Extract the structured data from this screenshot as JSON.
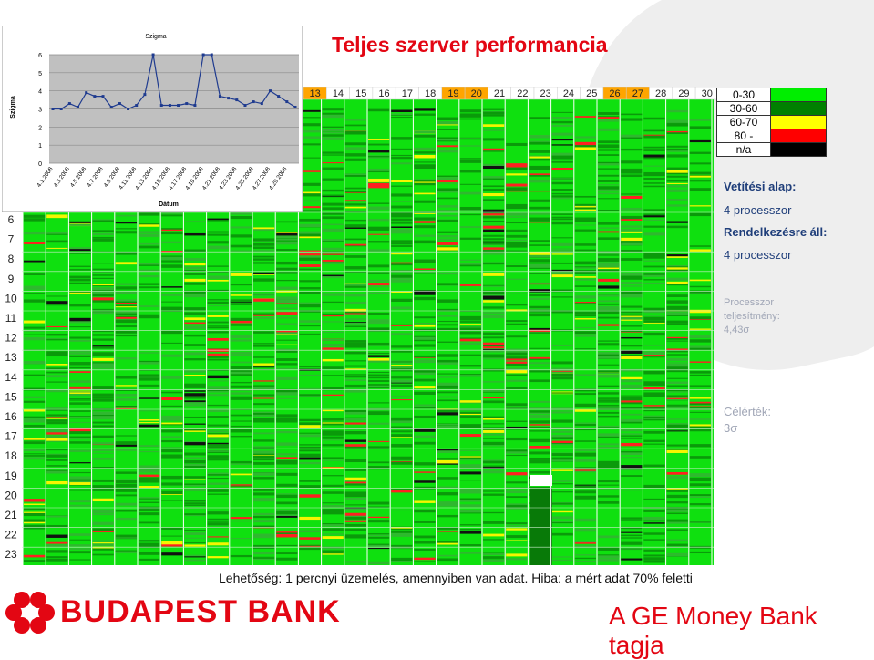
{
  "page": {
    "title": "Teljes szerver performancia",
    "footer_note": "Lehetőség: 1 percnyi üzemelés, amennyiben van adat. Hiba: a mért adat 70% feletti",
    "bank_name": "BUDAPEST BANK",
    "tagline": "A GE Money Bank tagja"
  },
  "info": {
    "base_label": "Vetítési alap:",
    "base_value": "4 processzor",
    "avail_label": "Rendelkezésre áll:",
    "avail_value": "4 processzor",
    "perf_label_1": "Processzor",
    "perf_label_2": "teljesítmény:",
    "perf_value": "4,43σ",
    "target_label": "Célérték:",
    "target_value": "3σ"
  },
  "legend": [
    {
      "label": "0-30",
      "color": "#00ee00"
    },
    {
      "label": "30-60",
      "color": "#008000"
    },
    {
      "label": "60-70",
      "color": "#ffff00"
    },
    {
      "label": "80 -",
      "color": "#ff0000"
    },
    {
      "label": "n/a",
      "color": "#000000"
    }
  ],
  "heatmap": {
    "columns": [
      "13",
      "14",
      "15",
      "16",
      "17",
      "18",
      "19",
      "20",
      "21",
      "22",
      "23",
      "24",
      "25",
      "26",
      "27",
      "28",
      "29",
      "30"
    ],
    "highlighted_columns": [
      "13",
      "19",
      "20",
      "26",
      "27"
    ],
    "rows": [
      "6",
      "7",
      "8",
      "9",
      "10",
      "11",
      "12",
      "13",
      "14",
      "15",
      "16",
      "17",
      "18",
      "19",
      "20",
      "21",
      "22",
      "23"
    ]
  },
  "chart_data": {
    "type": "line",
    "title": "Szigma",
    "xlabel": "Dátum",
    "ylabel": "Szigma",
    "ylim": [
      0,
      6
    ],
    "yticks": [
      0,
      1,
      2,
      3,
      4,
      5,
      6
    ],
    "x_tick_labels": [
      "4.1.2008",
      "4.3.2008",
      "4.5.2008",
      "4.7.2008",
      "4.9.2008",
      "4.11.2008",
      "4.13.2008",
      "4.15.2008",
      "4.17.2008",
      "4.19.2008",
      "4.21.2008",
      "4.23.2008",
      "4.25.2008",
      "4.27.2008",
      "4.29.2008"
    ],
    "series": [
      {
        "values": [
          3.0,
          3.0,
          3.3,
          3.1,
          3.9,
          3.7,
          3.7,
          3.1,
          3.3,
          3.0,
          3.2,
          3.8,
          6.0,
          3.2,
          3.2,
          3.2,
          3.3,
          3.2,
          6.0,
          6.0,
          3.7,
          3.6,
          3.5,
          3.2,
          3.4,
          3.3,
          4.0,
          3.7,
          3.4,
          3.1
        ],
        "color": "#1f3b8f"
      }
    ],
    "grid": true
  }
}
